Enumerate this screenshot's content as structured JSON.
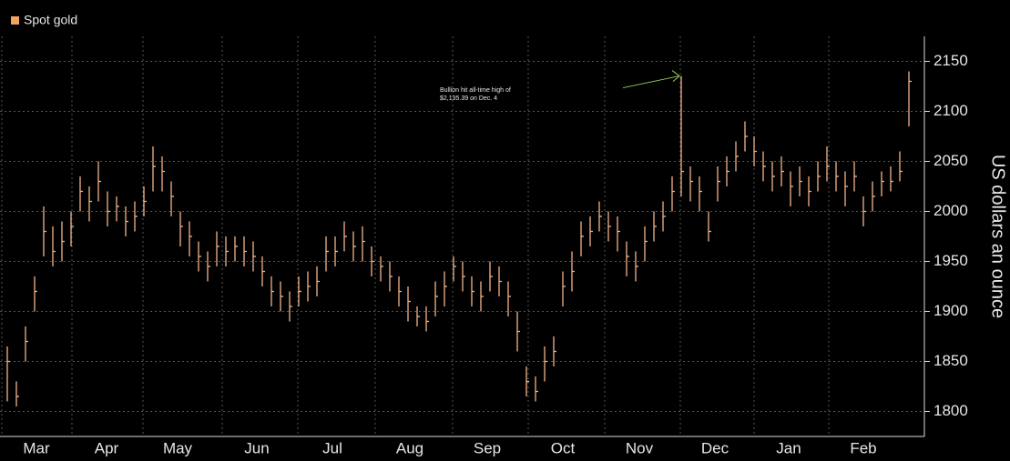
{
  "chart_data": {
    "type": "hlc",
    "legend": "Spot gold",
    "y_label": "US dollars an ounce",
    "annotation": [
      "Bullion hit all-time high of",
      "$2,135.39 on Dec. 4"
    ],
    "annotation_index": 74,
    "color": "#f3b487",
    "xlim": [
      -0.8,
      100
    ],
    "xticks": [
      {
        "value": 3.2,
        "label": "Mar"
      },
      {
        "value": 10.9,
        "label": "Apr"
      },
      {
        "value": 18.7,
        "label": "May"
      },
      {
        "value": 27.4,
        "label": "Jun"
      },
      {
        "value": 35.7,
        "label": "Jul"
      },
      {
        "value": 44.2,
        "label": "Aug"
      },
      {
        "value": 52.7,
        "label": "Sep"
      },
      {
        "value": 61,
        "label": "Oct"
      },
      {
        "value": 69.4,
        "label": "Nov"
      },
      {
        "value": 77.7,
        "label": "Dec"
      },
      {
        "value": 85.8,
        "label": "Jan"
      },
      {
        "value": 94,
        "label": "Feb"
      }
    ],
    "ylim": [
      1775,
      2175
    ],
    "yticks": [
      1800,
      1850,
      1900,
      1950,
      2000,
      2050,
      2100,
      2150
    ],
    "grid": true,
    "close": [
      1850,
      1815,
      1870,
      1920,
      1980,
      1960,
      1970,
      1985,
      2020,
      2010,
      2030,
      2000,
      2005,
      1990,
      1995,
      2010,
      2045,
      2040,
      2015,
      1985,
      1975,
      1955,
      1945,
      1965,
      1960,
      1965,
      1960,
      1955,
      1940,
      1920,
      1915,
      1905,
      1920,
      1925,
      1930,
      1960,
      1960,
      1975,
      1965,
      1970,
      1950,
      1945,
      1935,
      1920,
      1910,
      1895,
      1890,
      1915,
      1925,
      1945,
      1935,
      1920,
      1915,
      1935,
      1930,
      1915,
      1880,
      1830,
      1820,
      1850,
      1860,
      1925,
      1940,
      1975,
      1980,
      1995,
      1985,
      1980,
      1955,
      1945,
      1970,
      1985,
      1995,
      2020,
      2040,
      2030,
      2020,
      1980,
      2030,
      2040,
      2055,
      2075,
      2060,
      2045,
      2035,
      2040,
      2025,
      2030,
      2020,
      2035,
      2045,
      2035,
      2025,
      2035,
      2000,
      2015,
      2030,
      2030,
      2040,
      2130
    ],
    "high": [
      1865,
      1830,
      1885,
      1935,
      2005,
      1985,
      1990,
      2000,
      2035,
      2025,
      2050,
      2020,
      2015,
      2005,
      2010,
      2025,
      2065,
      2055,
      2030,
      2000,
      1990,
      1970,
      1960,
      1980,
      1975,
      1975,
      1975,
      1970,
      1955,
      1935,
      1930,
      1920,
      1935,
      1940,
      1945,
      1975,
      1975,
      1990,
      1980,
      1985,
      1965,
      1955,
      1950,
      1935,
      1925,
      1905,
      1905,
      1930,
      1940,
      1955,
      1950,
      1935,
      1930,
      1950,
      1945,
      1930,
      1900,
      1845,
      1835,
      1865,
      1875,
      1940,
      1960,
      1990,
      1995,
      2010,
      2000,
      1995,
      1970,
      1960,
      1985,
      2000,
      2010,
      2035,
      2135.39,
      2045,
      2035,
      2000,
      2045,
      2055,
      2070,
      2090,
      2075,
      2060,
      2050,
      2055,
      2040,
      2045,
      2035,
      2050,
      2065,
      2050,
      2040,
      2050,
      2015,
      2030,
      2040,
      2045,
      2060,
      2140
    ],
    "low": [
      1810,
      1805,
      1850,
      1900,
      1955,
      1945,
      1950,
      1965,
      2000,
      1990,
      2010,
      1985,
      1990,
      1975,
      1980,
      1995,
      2020,
      2020,
      1995,
      1965,
      1955,
      1940,
      1930,
      1945,
      1945,
      1950,
      1945,
      1940,
      1925,
      1905,
      1900,
      1890,
      1905,
      1910,
      1915,
      1940,
      1945,
      1960,
      1950,
      1950,
      1935,
      1930,
      1920,
      1905,
      1890,
      1885,
      1880,
      1895,
      1905,
      1930,
      1920,
      1905,
      1900,
      1920,
      1915,
      1895,
      1860,
      1815,
      1810,
      1830,
      1845,
      1905,
      1920,
      1955,
      1965,
      1980,
      1970,
      1960,
      1935,
      1930,
      1950,
      1970,
      1980,
      2000,
      2015,
      2010,
      2000,
      1970,
      2010,
      2025,
      2040,
      2060,
      2045,
      2030,
      2020,
      2025,
      2005,
      2015,
      2005,
      2020,
      2030,
      2020,
      2005,
      2020,
      1985,
      2000,
      2015,
      2020,
      2030,
      2085
    ]
  }
}
